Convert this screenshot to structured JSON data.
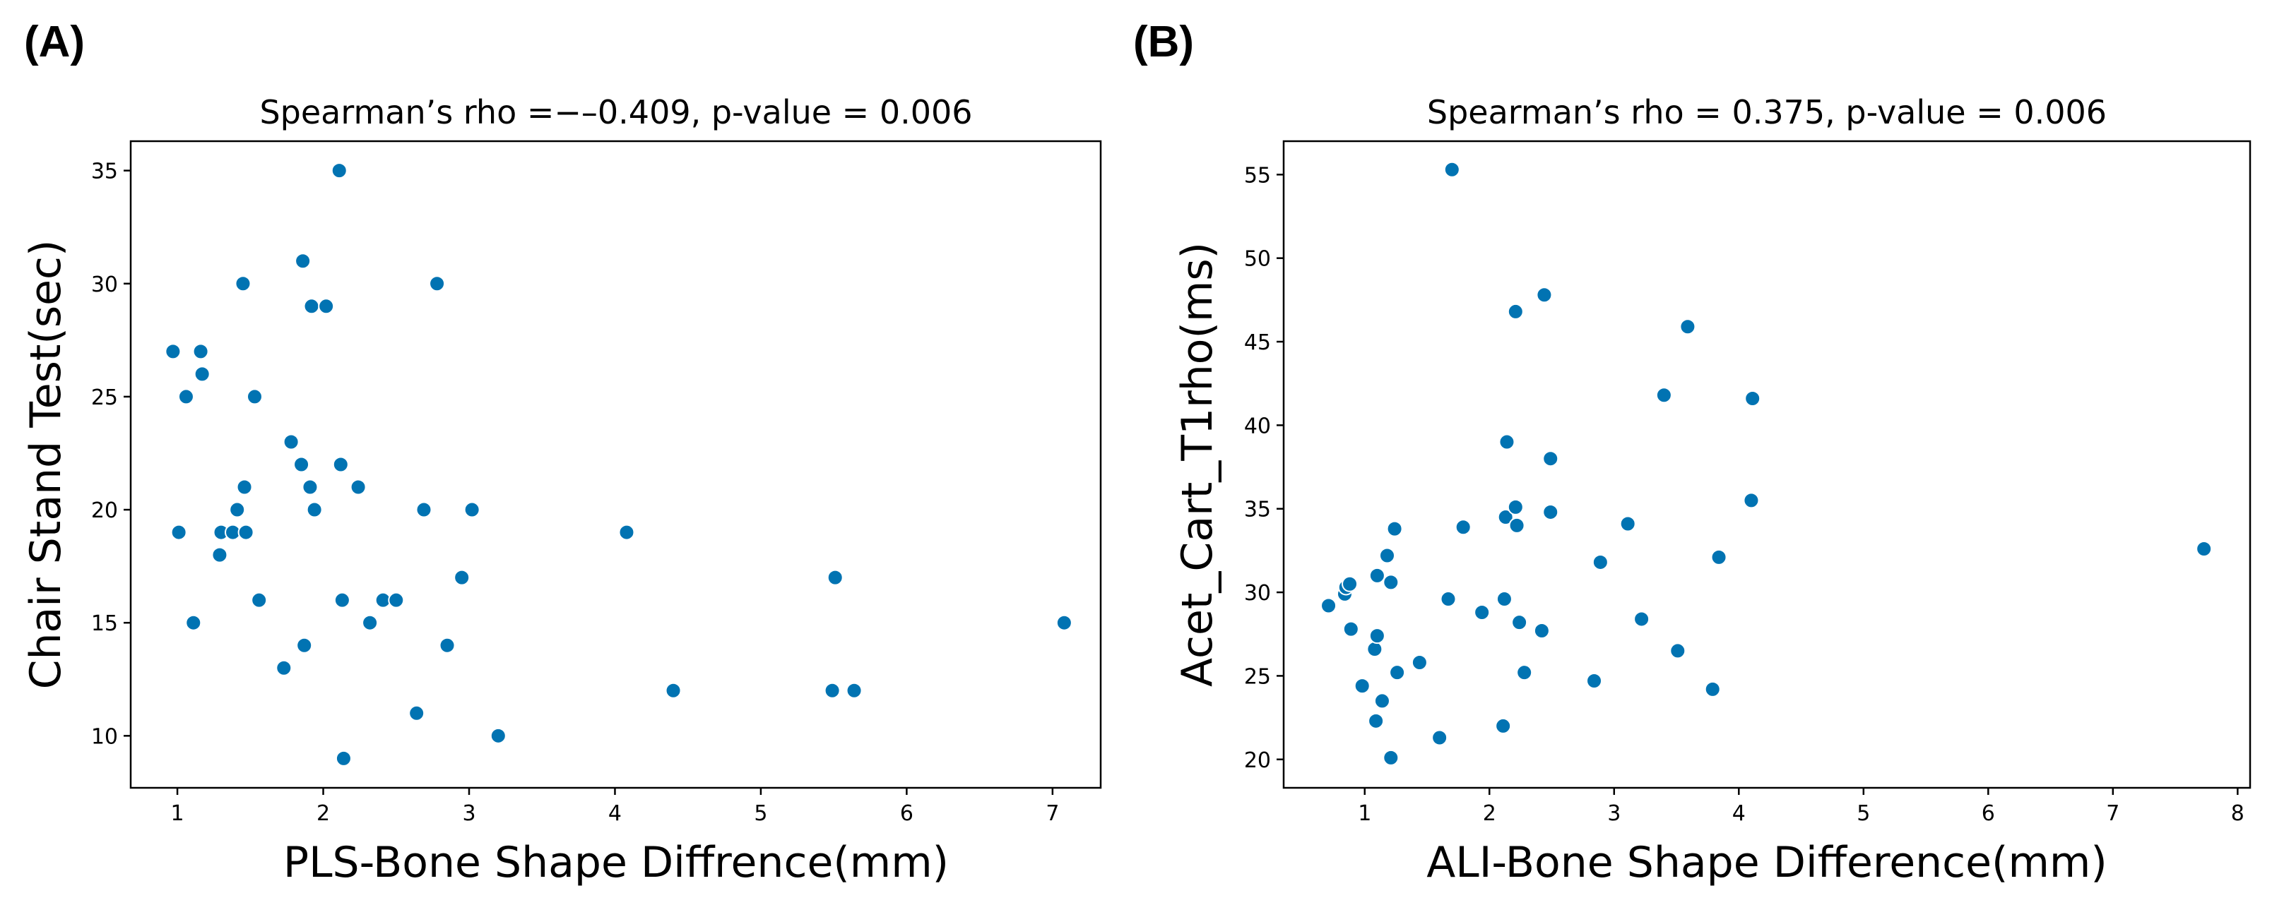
{
  "chart_data": [
    {
      "panel": "(A)",
      "type": "scatter",
      "title": "Spearman’s rho =−–0.409, p-value = 0.006",
      "xlabel": "PLS-Bone Shape Diffrence(mm)",
      "ylabel": "Chair Stand Test(sec)",
      "xlim": [
        0.68,
        7.33
      ],
      "ylim": [
        7.7,
        36.3
      ],
      "xticks": [
        1,
        2,
        3,
        4,
        5,
        6,
        7
      ],
      "yticks": [
        10,
        15,
        20,
        25,
        30,
        35
      ],
      "color": "#0173b2",
      "points": [
        {
          "x": 0.97,
          "y": 27
        },
        {
          "x": 1.01,
          "y": 19
        },
        {
          "x": 1.06,
          "y": 25
        },
        {
          "x": 1.11,
          "y": 15
        },
        {
          "x": 1.16,
          "y": 27
        },
        {
          "x": 1.17,
          "y": 26
        },
        {
          "x": 1.29,
          "y": 18
        },
        {
          "x": 1.3,
          "y": 19
        },
        {
          "x": 1.38,
          "y": 19
        },
        {
          "x": 1.41,
          "y": 20
        },
        {
          "x": 1.45,
          "y": 30
        },
        {
          "x": 1.46,
          "y": 21
        },
        {
          "x": 1.47,
          "y": 19
        },
        {
          "x": 1.53,
          "y": 25
        },
        {
          "x": 1.56,
          "y": 16
        },
        {
          "x": 1.73,
          "y": 13
        },
        {
          "x": 1.78,
          "y": 23
        },
        {
          "x": 1.85,
          "y": 22
        },
        {
          "x": 1.86,
          "y": 31
        },
        {
          "x": 1.87,
          "y": 14
        },
        {
          "x": 1.91,
          "y": 21
        },
        {
          "x": 1.92,
          "y": 29
        },
        {
          "x": 1.94,
          "y": 20
        },
        {
          "x": 2.02,
          "y": 29
        },
        {
          "x": 2.11,
          "y": 35
        },
        {
          "x": 2.12,
          "y": 22
        },
        {
          "x": 2.13,
          "y": 16
        },
        {
          "x": 2.14,
          "y": 9
        },
        {
          "x": 2.24,
          "y": 21
        },
        {
          "x": 2.32,
          "y": 15
        },
        {
          "x": 2.41,
          "y": 16
        },
        {
          "x": 2.5,
          "y": 16
        },
        {
          "x": 2.64,
          "y": 11
        },
        {
          "x": 2.69,
          "y": 20
        },
        {
          "x": 2.78,
          "y": 30
        },
        {
          "x": 2.85,
          "y": 14
        },
        {
          "x": 2.95,
          "y": 17
        },
        {
          "x": 3.02,
          "y": 20
        },
        {
          "x": 3.2,
          "y": 10
        },
        {
          "x": 4.08,
          "y": 19
        },
        {
          "x": 4.4,
          "y": 12
        },
        {
          "x": 5.49,
          "y": 12
        },
        {
          "x": 5.51,
          "y": 17
        },
        {
          "x": 5.64,
          "y": 12
        },
        {
          "x": 7.08,
          "y": 15
        }
      ]
    },
    {
      "panel": "(B)",
      "type": "scatter",
      "title": "Spearman’s rho = 0.375, p-value = 0.006",
      "xlabel": "ALI-Bone Shape Difference(mm)",
      "ylabel": "Acet_Cart_T1rho(ms)",
      "xlim": [
        0.35,
        8.1
      ],
      "ylim": [
        18.3,
        57.0
      ],
      "xticks": [
        1,
        2,
        3,
        4,
        5,
        6,
        7,
        8
      ],
      "yticks": [
        20,
        25,
        30,
        35,
        40,
        45,
        50,
        55
      ],
      "color": "#0173b2",
      "points": [
        {
          "x": 0.71,
          "y": 29.2
        },
        {
          "x": 0.84,
          "y": 29.9
        },
        {
          "x": 0.85,
          "y": 30.3
        },
        {
          "x": 0.88,
          "y": 30.5
        },
        {
          "x": 0.89,
          "y": 27.8
        },
        {
          "x": 0.98,
          "y": 24.4
        },
        {
          "x": 1.08,
          "y": 26.6
        },
        {
          "x": 1.09,
          "y": 22.3
        },
        {
          "x": 1.1,
          "y": 27.4
        },
        {
          "x": 1.1,
          "y": 31.0
        },
        {
          "x": 1.14,
          "y": 23.5
        },
        {
          "x": 1.18,
          "y": 32.2
        },
        {
          "x": 1.21,
          "y": 30.6
        },
        {
          "x": 1.21,
          "y": 20.1
        },
        {
          "x": 1.24,
          "y": 33.8
        },
        {
          "x": 1.26,
          "y": 25.2
        },
        {
          "x": 1.44,
          "y": 25.8
        },
        {
          "x": 1.6,
          "y": 21.3
        },
        {
          "x": 1.67,
          "y": 29.6
        },
        {
          "x": 1.7,
          "y": 55.3
        },
        {
          "x": 1.79,
          "y": 33.9
        },
        {
          "x": 1.94,
          "y": 28.8
        },
        {
          "x": 2.11,
          "y": 22.0
        },
        {
          "x": 2.12,
          "y": 29.6
        },
        {
          "x": 2.13,
          "y": 34.5
        },
        {
          "x": 2.14,
          "y": 39.0
        },
        {
          "x": 2.21,
          "y": 35.1
        },
        {
          "x": 2.21,
          "y": 46.8
        },
        {
          "x": 2.22,
          "y": 34.0
        },
        {
          "x": 2.24,
          "y": 28.2
        },
        {
          "x": 2.28,
          "y": 25.2
        },
        {
          "x": 2.42,
          "y": 27.7
        },
        {
          "x": 2.44,
          "y": 47.8
        },
        {
          "x": 2.49,
          "y": 34.8
        },
        {
          "x": 2.49,
          "y": 38.0
        },
        {
          "x": 2.84,
          "y": 24.7
        },
        {
          "x": 2.89,
          "y": 31.8
        },
        {
          "x": 3.11,
          "y": 34.1
        },
        {
          "x": 3.22,
          "y": 28.4
        },
        {
          "x": 3.4,
          "y": 41.8
        },
        {
          "x": 3.51,
          "y": 26.5
        },
        {
          "x": 3.59,
          "y": 45.9
        },
        {
          "x": 3.79,
          "y": 24.2
        },
        {
          "x": 3.84,
          "y": 32.1
        },
        {
          "x": 4.1,
          "y": 35.5
        },
        {
          "x": 4.11,
          "y": 41.6
        },
        {
          "x": 7.73,
          "y": 32.6
        }
      ]
    }
  ]
}
